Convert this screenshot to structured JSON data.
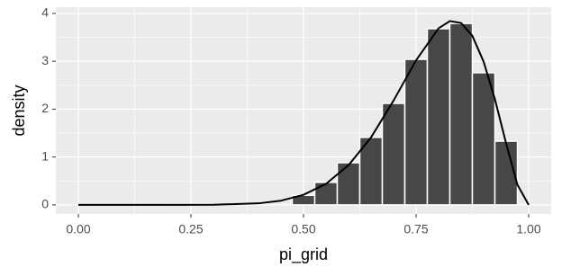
{
  "chart_data": {
    "type": "histogram",
    "x_label": "pi_grid",
    "y_label": "density",
    "bins": [
      0.475,
      0.525,
      0.575,
      0.625,
      0.675,
      0.725,
      0.775,
      0.825,
      0.875,
      0.925,
      0.975
    ],
    "values": [
      0.2,
      0.47,
      0.88,
      1.41,
      2.12,
      3.04,
      3.68,
      3.79,
      2.76,
      1.33
    ],
    "color": "#474747",
    "edge_color": "#ffffff",
    "curve": {
      "color": "#000000",
      "x": [
        0,
        0.1,
        0.2,
        0.3,
        0.4,
        0.45,
        0.5,
        0.55,
        0.6,
        0.65,
        0.7,
        0.75,
        0.8,
        0.825,
        0.85,
        0.875,
        0.9,
        0.925,
        0.95,
        0.975,
        1.0
      ],
      "values": [
        0,
        0,
        0,
        0.003,
        0.032,
        0.088,
        0.21,
        0.44,
        0.83,
        1.41,
        2.18,
        3.02,
        3.69,
        3.84,
        3.8,
        3.53,
        2.99,
        2.21,
        1.28,
        0.42,
        0
      ]
    },
    "xlim": [
      -0.05,
      1.05
    ],
    "ylim": [
      -0.19,
      4.13
    ],
    "xticks": [
      {
        "value": 0,
        "label": "0.00"
      },
      {
        "value": 0.25,
        "label": "0.25"
      },
      {
        "value": 0.5,
        "label": "0.50"
      },
      {
        "value": 0.75,
        "label": "0.75"
      },
      {
        "value": 1,
        "label": "1.00"
      }
    ],
    "yticks": [
      0,
      1,
      2,
      3,
      4
    ],
    "grid": true
  }
}
